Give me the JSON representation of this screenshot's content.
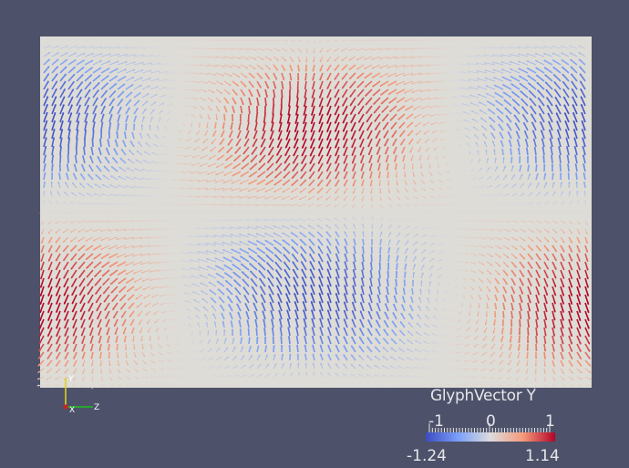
{
  "colors": {
    "background": "#4d526a",
    "plane": "#dedcd6",
    "negative": "#3b5fc8",
    "neutral": "#dddcdc",
    "positive": "#c02a22",
    "axis_x": "#d02020",
    "axis_y": "#e0d020",
    "axis_z": "#20c020"
  },
  "legend": {
    "title": "GlyphVector Y",
    "ticks": [
      "-1",
      "0",
      "1"
    ],
    "range_min": "-1.24",
    "range_max": "1.14"
  },
  "orientation_axes": {
    "x_label": "X",
    "y_label": "Y",
    "z_label": "Z"
  }
}
